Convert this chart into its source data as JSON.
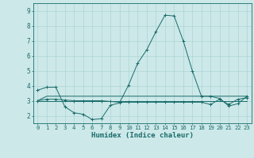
{
  "xlabel": "Humidex (Indice chaleur)",
  "background_color": "#cce8e8",
  "grid_color": "#aed4d4",
  "line_color": "#1a6b6b",
  "xlim": [
    -0.5,
    23.5
  ],
  "ylim": [
    1.5,
    9.5
  ],
  "yticks": [
    2,
    3,
    4,
    5,
    6,
    7,
    8,
    9
  ],
  "xticks": [
    0,
    1,
    2,
    3,
    4,
    5,
    6,
    7,
    8,
    9,
    10,
    11,
    12,
    13,
    14,
    15,
    16,
    17,
    18,
    19,
    20,
    21,
    22,
    23
  ],
  "series": [
    {
      "x": [
        0,
        1,
        2,
        3,
        4,
        5,
        6,
        7,
        8,
        9,
        10,
        11,
        12,
        13,
        14,
        15,
        16,
        17,
        18,
        19,
        20,
        21,
        22,
        23
      ],
      "y": [
        3.7,
        3.9,
        3.9,
        2.6,
        2.2,
        2.1,
        1.75,
        1.8,
        2.7,
        2.85,
        4.05,
        5.5,
        6.4,
        7.6,
        8.7,
        8.65,
        7.0,
        5.0,
        3.3,
        3.3,
        3.15,
        2.65,
        2.8,
        3.3
      ],
      "marker": true
    },
    {
      "x": [
        0,
        1,
        2,
        3,
        4,
        5,
        6,
        7,
        8,
        9,
        10,
        11,
        12,
        13,
        14,
        15,
        16,
        17,
        18,
        19,
        20,
        21,
        22,
        23
      ],
      "y": [
        3.0,
        3.3,
        3.3,
        3.3,
        3.3,
        3.3,
        3.3,
        3.3,
        3.3,
        3.3,
        3.3,
        3.3,
        3.3,
        3.3,
        3.3,
        3.3,
        3.3,
        3.3,
        3.3,
        3.3,
        3.3,
        3.3,
        3.3,
        3.3
      ],
      "marker": false
    },
    {
      "x": [
        0,
        1,
        2,
        3,
        4,
        5,
        6,
        7,
        8,
        9,
        10,
        11,
        12,
        13,
        14,
        15,
        16,
        17,
        18,
        19,
        20,
        21,
        22,
        23
      ],
      "y": [
        3.0,
        3.0,
        3.0,
        3.0,
        3.0,
        3.0,
        3.0,
        3.0,
        3.0,
        3.0,
        3.0,
        3.0,
        3.0,
        3.0,
        3.0,
        3.0,
        3.0,
        3.0,
        3.0,
        3.0,
        3.0,
        3.0,
        3.0,
        3.0
      ],
      "marker": false
    },
    {
      "x": [
        0,
        1,
        2,
        3,
        4,
        5,
        6,
        7,
        8,
        9,
        10,
        11,
        12,
        13,
        14,
        15,
        16,
        17,
        18,
        19,
        20,
        21,
        22,
        23
      ],
      "y": [
        3.0,
        3.1,
        3.1,
        3.05,
        3.0,
        3.0,
        3.0,
        3.0,
        2.95,
        2.9,
        2.9,
        2.9,
        2.9,
        2.9,
        2.9,
        2.9,
        2.9,
        2.9,
        2.9,
        2.75,
        3.1,
        2.75,
        3.1,
        3.2
      ],
      "marker": true
    }
  ]
}
